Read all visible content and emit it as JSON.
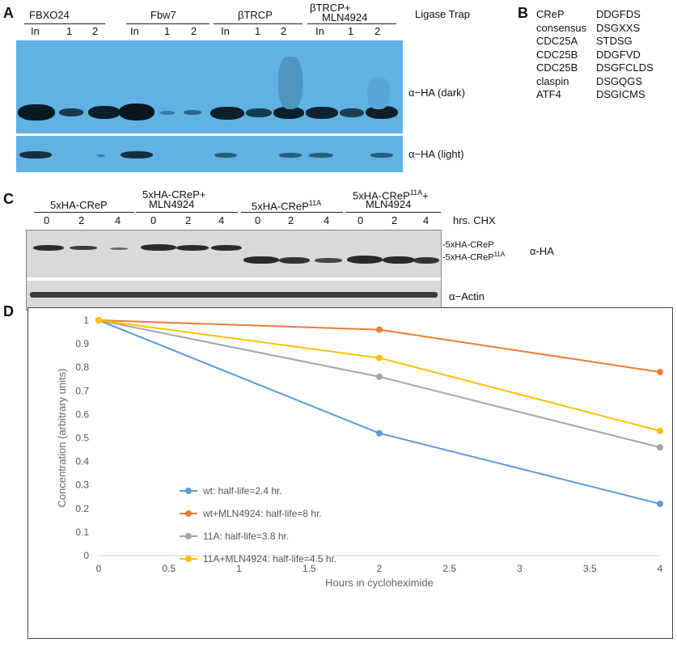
{
  "panel_a": {
    "letter": "A",
    "groups": [
      "FBXO24",
      "Fbw7",
      "βTRCP",
      "βTRCP+\nMLN4924"
    ],
    "group_line1": [
      "FBXO24",
      "Fbw7",
      "βTRCP",
      "βTRCP+"
    ],
    "group_line2_last": "MLN4924",
    "lanes": [
      "In",
      "1",
      "2",
      "In",
      "1",
      "2",
      "In",
      "1",
      "2",
      "In",
      "1",
      "2"
    ],
    "header_right": "Ligase Trap",
    "label_dark": "α−HA (dark)",
    "label_light": "α−HA (light)"
  },
  "panel_b": {
    "letter": "B",
    "rows": [
      {
        "name": "CReP",
        "motif": "DDGFDS"
      },
      {
        "name": "consensus",
        "motif": "DSGXXS"
      },
      {
        "name": "CDC25A",
        "motif": "STDSG"
      },
      {
        "name": "CDC25B",
        "motif": "DDGFVD"
      },
      {
        "name": "CDC25B",
        "motif": "DSGFCLDS"
      },
      {
        "name": "claspin",
        "motif": "DSGQGS"
      },
      {
        "name": "ATF4",
        "motif": "DSGICMS"
      }
    ]
  },
  "panel_c": {
    "letter": "C",
    "group1": "5xHA-CReP",
    "group2_line1": "5xHA-CReP+",
    "group2_line2": "MLN4924",
    "group3_base": "5xHA-CReP",
    "group3_sup": "11A",
    "group4_base": "5xHA-CReP",
    "group4_sup": "11A",
    "group4_suffix": "+",
    "group4_line2": "MLN4924",
    "timepoints": [
      "0",
      "2",
      "4",
      "0",
      "2",
      "4",
      "0",
      "2",
      "4",
      "0",
      "2",
      "4"
    ],
    "cond_label": "hrs. CHX",
    "marker_wt": "5xHA-CReP",
    "marker_11a_base": "5xHA-CReP",
    "marker_11a_sup": "11A",
    "label_ha": "α-HA",
    "label_actin": "α−Actin"
  },
  "panel_d": {
    "letter": "D"
  },
  "chart_data": {
    "type": "line",
    "xlabel": "Hours in cycloheximide",
    "ylabel": "Concentration (arbitrary units)",
    "xlim": [
      0,
      4
    ],
    "ylim": [
      0,
      1
    ],
    "xticks": [
      "0",
      "0.5",
      "1",
      "1.5",
      "2",
      "2.5",
      "3",
      "3.5",
      "4"
    ],
    "yticks": [
      "0",
      "0.1",
      "0.2",
      "0.3",
      "0.4",
      "0.5",
      "0.6",
      "0.7",
      "0.8",
      "0.9",
      "1"
    ],
    "grid": false,
    "legend_position": "center-left",
    "series": [
      {
        "name": "wt: half-life=2.4 hr.",
        "color": "#5b9bd5",
        "x": [
          0,
          2,
          4
        ],
        "y": [
          1,
          0.52,
          0.22
        ]
      },
      {
        "name": "wt+MLN4924: half-life=8 hr.",
        "color": "#ed7d31",
        "x": [
          0,
          2,
          4
        ],
        "y": [
          1,
          0.96,
          0.78
        ]
      },
      {
        "name": "11A: half-life=3.8 hr.",
        "color": "#a5a5a5",
        "x": [
          0,
          2,
          4
        ],
        "y": [
          1,
          0.76,
          0.46
        ]
      },
      {
        "name": "11A+MLN4924: half-life=4.5 hr.",
        "color": "#ffc000",
        "x": [
          0,
          2,
          4
        ],
        "y": [
          1,
          0.84,
          0.53
        ]
      }
    ]
  }
}
